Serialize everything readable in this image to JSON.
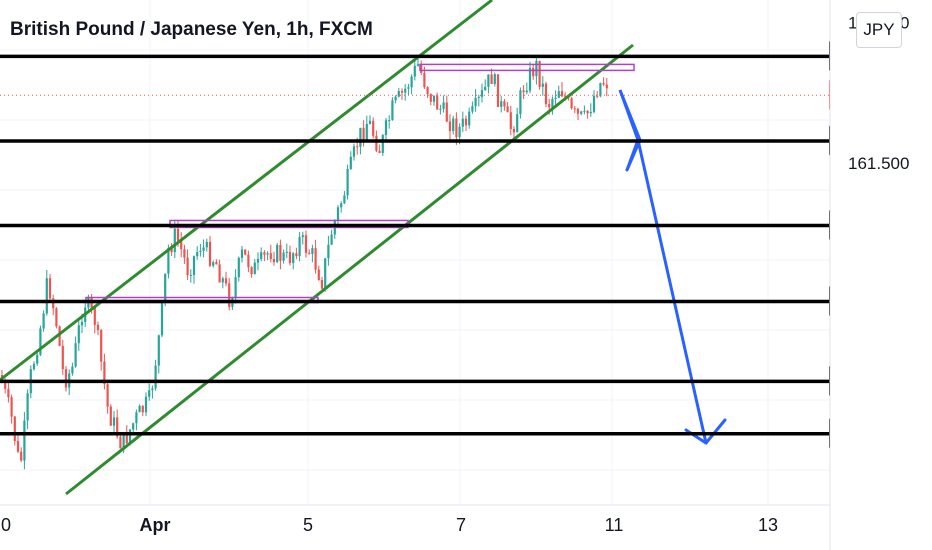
{
  "chart_data": {
    "type": "candlestick",
    "title": "British Pound / Japanese Yen, 1h, FXCM",
    "currency": "JPY",
    "x_tick_labels": [
      "0",
      "Apr",
      "5",
      "7",
      "11",
      "13"
    ],
    "y_tick_labels": [
      "162.500",
      "161.500"
    ],
    "current_price": "161.982",
    "level_lines": [
      "162.259",
      "161.656",
      "161.054",
      "160.512",
      "159.943",
      "159.569"
    ],
    "colors": {
      "up": "#26a69a",
      "down": "#ef5350",
      "channel": "#2e8b2e",
      "range": "#b040c8",
      "arrow": "#2962ff",
      "level": "#000000",
      "current": "#ef5350"
    },
    "annotations": [
      "ascending channel",
      "resistance box 162.26",
      "range box 161.05 to 160.51",
      "projected drop to 159.57"
    ],
    "grid": true,
    "ylim": [
      159.2,
      162.5
    ]
  }
}
